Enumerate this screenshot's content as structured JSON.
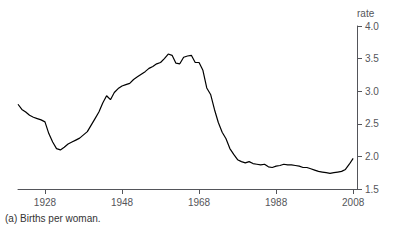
{
  "chart_data": {
    "type": "line",
    "ylabel": "rate",
    "footnote": "(a) Births per woman.",
    "color": "#000000",
    "grid": false,
    "xlim": [
      1921,
      2009
    ],
    "ylim": [
      1.5,
      4.0
    ],
    "xticks": [
      1928,
      1948,
      1968,
      1988,
      2008
    ],
    "yticks": [
      1.5,
      {
        "value": 2.0,
        "label": "2.0"
      },
      2.5,
      {
        "value": 3.0,
        "label": "3.0"
      },
      3.5,
      {
        "value": 4.0,
        "label": "4.0"
      }
    ],
    "x": [
      1921,
      1922,
      1923,
      1924,
      1925,
      1926,
      1927,
      1928,
      1929,
      1930,
      1931,
      1932,
      1933,
      1934,
      1935,
      1936,
      1937,
      1938,
      1939,
      1940,
      1941,
      1942,
      1943,
      1944,
      1945,
      1946,
      1947,
      1948,
      1949,
      1950,
      1951,
      1952,
      1953,
      1954,
      1955,
      1956,
      1957,
      1958,
      1959,
      1960,
      1961,
      1962,
      1963,
      1964,
      1965,
      1966,
      1967,
      1968,
      1969,
      1970,
      1971,
      1972,
      1973,
      1974,
      1975,
      1976,
      1977,
      1978,
      1979,
      1980,
      1981,
      1982,
      1983,
      1984,
      1985,
      1986,
      1987,
      1988,
      1989,
      1990,
      1991,
      1992,
      1993,
      1994,
      1995,
      1996,
      1997,
      1998,
      1999,
      2000,
      2001,
      2002,
      2003,
      2004,
      2005,
      2006,
      2007,
      2008
    ],
    "values": [
      2.8,
      2.72,
      2.68,
      2.63,
      2.6,
      2.58,
      2.56,
      2.53,
      2.35,
      2.22,
      2.12,
      2.1,
      2.14,
      2.19,
      2.22,
      2.25,
      2.28,
      2.33,
      2.38,
      2.48,
      2.58,
      2.68,
      2.82,
      2.93,
      2.87,
      2.98,
      3.04,
      3.08,
      3.1,
      3.12,
      3.18,
      3.22,
      3.26,
      3.3,
      3.35,
      3.38,
      3.42,
      3.44,
      3.5,
      3.57,
      3.55,
      3.43,
      3.42,
      3.52,
      3.54,
      3.55,
      3.44,
      3.44,
      3.32,
      3.05,
      2.95,
      2.72,
      2.52,
      2.37,
      2.27,
      2.12,
      2.03,
      1.95,
      1.92,
      1.9,
      1.92,
      1.89,
      1.88,
      1.87,
      1.88,
      1.84,
      1.83,
      1.85,
      1.86,
      1.88,
      1.87,
      1.87,
      1.86,
      1.85,
      1.83,
      1.83,
      1.81,
      1.79,
      1.77,
      1.76,
      1.75,
      1.74,
      1.75,
      1.76,
      1.77,
      1.8,
      1.88,
      1.97
    ]
  }
}
